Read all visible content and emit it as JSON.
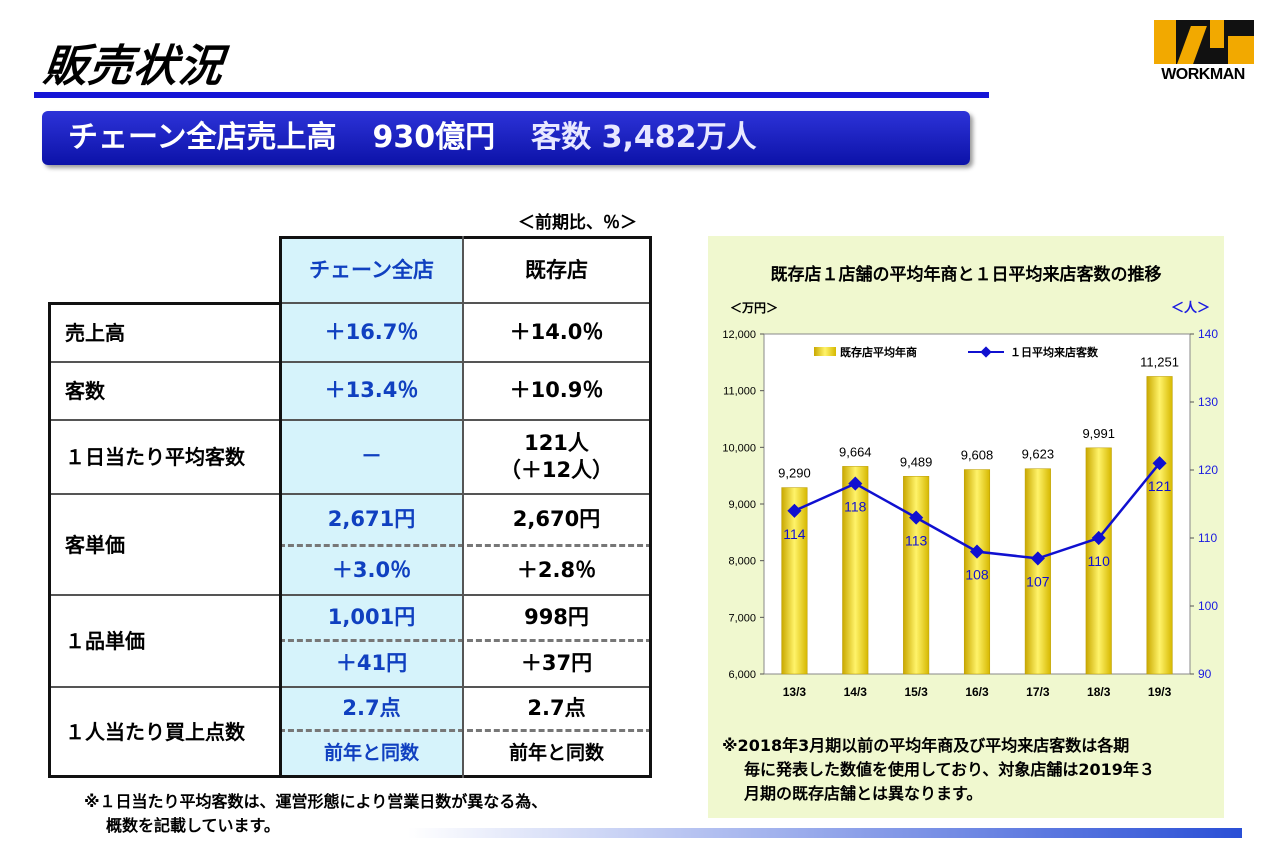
{
  "page": {
    "title": "販売状況",
    "logo_text": "WORKMAN",
    "banner": {
      "part1": "チェーン全店売上高",
      "part2": "930億円",
      "part3": "客数 3,482万人"
    }
  },
  "table": {
    "unit_note": "＜前期比、％＞",
    "headers": {
      "chain": "チェーン全店",
      "existing": "既存店"
    },
    "rows": {
      "sales": {
        "label": "売上高",
        "chain": "＋16.7％",
        "existing": "＋14.0％"
      },
      "customers": {
        "label": "客数",
        "chain": "＋13.4％",
        "existing": "＋10.9％"
      },
      "daily": {
        "label": "１日当たり平均客数",
        "chain": "－",
        "existing_1": "121人",
        "existing_2": "（＋12人）"
      },
      "unit_price": {
        "label": "客単価",
        "chain_1": "2,671円",
        "existing_1": "2,670円",
        "chain_2": "＋3.0％",
        "existing_2": "＋2.8％"
      },
      "item_price": {
        "label": "１品単価",
        "chain_1": "1,001円",
        "existing_1": "998円",
        "chain_2": "＋41円",
        "existing_2": "＋37円"
      },
      "items": {
        "label": "１人当たり買上点数",
        "chain_1": "2.7点",
        "existing_1": "2.7点",
        "chain_2": "前年と同数",
        "existing_2": "前年と同数"
      }
    },
    "footnote_1": "※１日当たり平均客数は、運営形態により営業日数が異なる為、",
    "footnote_2": "概数を記載しています。"
  },
  "chart_data": {
    "type": "bar",
    "title": "既存店１店舗の平均年商と１日平均来店客数の推移",
    "categories": [
      "13/3",
      "14/3",
      "15/3",
      "16/3",
      "17/3",
      "18/3",
      "19/3"
    ],
    "series": [
      {
        "name": "既存店平均年商",
        "type": "bar",
        "axis": "left",
        "values": [
          9290,
          9664,
          9489,
          9608,
          9623,
          9991,
          11251
        ],
        "labels": [
          "9,290",
          "9,664",
          "9,489",
          "9,608",
          "9,623",
          "9,991",
          "11,251"
        ]
      },
      {
        "name": "１日平均来店客数",
        "type": "line",
        "axis": "right",
        "values": [
          114,
          118,
          113,
          108,
          107,
          110,
          121
        ]
      }
    ],
    "ylabel": "＜万円＞",
    "y2label": "＜人＞",
    "ylim": [
      6000,
      12000
    ],
    "yticks": [
      "6,000",
      "7,000",
      "8,000",
      "9,000",
      "10,000",
      "11,000",
      "12,000"
    ],
    "y2lim": [
      90,
      140
    ],
    "y2ticks": [
      "90",
      "100",
      "110",
      "120",
      "130",
      "140"
    ],
    "note_1": "※2018年3月期以前の平均年商及び平均来店客数は各期",
    "note_2": "毎に発表した数値を使用しており、対象店舗は2019年３",
    "note_3": "月期の既存店舗とは異なります。",
    "colors": {
      "bar": "#f2d600",
      "line": "#1010d0",
      "right_axis": "#1a1ae0"
    }
  }
}
